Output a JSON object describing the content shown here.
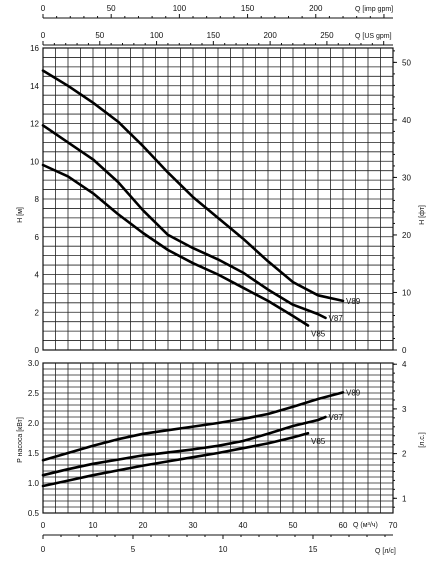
{
  "chart_data": [
    {
      "type": "line",
      "title": "",
      "ylabel": "H [м]",
      "y2label": "H [фт]",
      "xlabel_top1": "Q [imp gpm]",
      "xlabel_top2": "Q [US gpm]",
      "ylim": [
        0,
        16
      ],
      "y2lim": [
        0,
        52.5
      ],
      "xlim_m3h": [
        0,
        70
      ],
      "y_ticks": [
        "0",
        "2",
        "4",
        "6",
        "8",
        "10",
        "12",
        "14",
        "16"
      ],
      "y2_ticks": [
        "0",
        "10",
        "20",
        "30",
        "40",
        "50"
      ],
      "x_imp_ticks": [
        "0",
        "50",
        "100",
        "150",
        "200"
      ],
      "x_us_ticks": [
        "0",
        "50",
        "100",
        "150",
        "200",
        "250"
      ],
      "grid": true,
      "series": [
        {
          "name": "V89",
          "x": [
            0,
            5,
            10,
            15,
            20,
            25,
            30,
            35,
            40,
            45,
            50,
            55,
            60
          ],
          "y": [
            14.8,
            14.0,
            13.1,
            12.1,
            10.8,
            9.4,
            8.1,
            7.0,
            5.9,
            4.7,
            3.6,
            2.9,
            2.6
          ]
        },
        {
          "name": "V87",
          "x": [
            0,
            5,
            10,
            15,
            20,
            25,
            30,
            35,
            40,
            45,
            50,
            55,
            56.5
          ],
          "y": [
            11.9,
            11.0,
            10.1,
            8.9,
            7.4,
            6.1,
            5.4,
            4.8,
            4.1,
            3.2,
            2.4,
            1.9,
            1.7
          ]
        },
        {
          "name": "V85",
          "x": [
            0,
            5,
            10,
            15,
            20,
            25,
            30,
            35,
            40,
            45,
            50,
            53
          ],
          "y": [
            9.8,
            9.2,
            8.3,
            7.2,
            6.2,
            5.3,
            4.6,
            4.0,
            3.3,
            2.6,
            1.8,
            1.3
          ]
        }
      ]
    },
    {
      "type": "line",
      "title": "",
      "ylabel": "P насоса [кВт]",
      "y2label": "[л.с.]",
      "xlabel": "Q (м³/ч)",
      "xlabel_bottom": "Q [л/с]",
      "ylim": [
        0.5,
        3.0
      ],
      "y2lim": [
        0.67,
        4.0
      ],
      "xlim": [
        0,
        70
      ],
      "y_ticks": [
        "0.5",
        "1.0",
        "1.5",
        "2.0",
        "2.5",
        "3.0"
      ],
      "y2_ticks": [
        "1",
        "2",
        "3",
        "4"
      ],
      "x_ticks": [
        "0",
        "10",
        "20",
        "30",
        "40",
        "50",
        "60",
        "70"
      ],
      "x_ls_ticks": [
        "0",
        "5",
        "10",
        "15"
      ],
      "grid": true,
      "series": [
        {
          "name": "V89",
          "x": [
            0,
            5,
            10,
            15,
            20,
            25,
            30,
            35,
            40,
            45,
            50,
            55,
            60
          ],
          "y": [
            1.38,
            1.5,
            1.62,
            1.73,
            1.82,
            1.88,
            1.94,
            2.0,
            2.07,
            2.15,
            2.27,
            2.4,
            2.51
          ]
        },
        {
          "name": "V87",
          "x": [
            0,
            5,
            10,
            15,
            20,
            25,
            30,
            35,
            40,
            45,
            50,
            55,
            56.5
          ],
          "y": [
            1.13,
            1.23,
            1.32,
            1.39,
            1.46,
            1.51,
            1.56,
            1.62,
            1.7,
            1.82,
            1.95,
            2.05,
            2.1
          ]
        },
        {
          "name": "V85",
          "x": [
            0,
            5,
            10,
            15,
            20,
            25,
            30,
            35,
            40,
            45,
            50,
            53
          ],
          "y": [
            0.95,
            1.04,
            1.13,
            1.21,
            1.29,
            1.36,
            1.43,
            1.5,
            1.58,
            1.66,
            1.76,
            1.83
          ]
        }
      ]
    }
  ]
}
